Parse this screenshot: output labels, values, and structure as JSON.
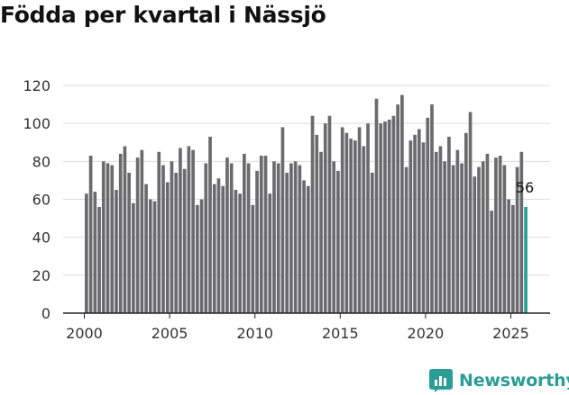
{
  "title": "Födda per kvartal i Nässjö",
  "brand": {
    "name": "Newsworthy",
    "color": "#2a9d96"
  },
  "chart_data": {
    "type": "bar",
    "title": "Födda per kvartal i Nässjö",
    "xlabel": "",
    "ylabel": "",
    "ylim": [
      0,
      120
    ],
    "yticks": [
      0,
      20,
      40,
      60,
      80,
      100,
      120
    ],
    "xticks": [
      "2000",
      "2005",
      "2010",
      "2015",
      "2020",
      "2025"
    ],
    "grid": true,
    "bar_color": "#6b6b6e",
    "highlight_color": "#2a9d96",
    "start_year": 2000,
    "start_quarter": 1,
    "highlight_label": "56",
    "values": [
      63,
      83,
      64,
      56,
      80,
      79,
      78,
      65,
      84,
      88,
      74,
      58,
      82,
      86,
      68,
      60,
      59,
      85,
      78,
      69,
      80,
      74,
      87,
      76,
      88,
      86,
      57,
      60,
      79,
      93,
      68,
      71,
      67,
      82,
      79,
      65,
      63,
      84,
      79,
      57,
      75,
      83,
      83,
      63,
      80,
      79,
      98,
      74,
      79,
      80,
      78,
      70,
      67,
      104,
      94,
      85,
      100,
      104,
      80,
      75,
      98,
      95,
      92,
      91,
      98,
      88,
      100,
      74,
      113,
      100,
      101,
      102,
      104,
      110,
      115,
      77,
      91,
      94,
      97,
      90,
      103,
      110,
      85,
      88,
      80,
      93,
      78,
      86,
      79,
      95,
      106,
      72,
      77,
      80,
      84,
      54,
      82,
      83,
      78,
      60,
      57,
      77,
      85,
      56
    ]
  }
}
